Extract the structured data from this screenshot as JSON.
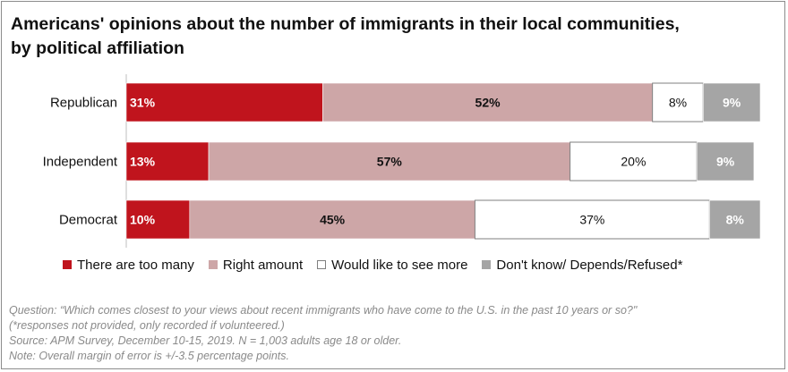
{
  "title": {
    "line1": "Americans' opinions about the number of immigrants in their local communities,",
    "line2": "by political affiliation"
  },
  "chart_data": {
    "type": "bar",
    "orientation": "horizontal",
    "stacked": true,
    "categories": [
      "Republican",
      "Independent",
      "Democrat"
    ],
    "series": [
      {
        "name": "There are too many",
        "values": [
          31,
          13,
          10
        ],
        "color": "#c0141d",
        "label_color": "#ffffff",
        "border": null
      },
      {
        "name": "Right amount",
        "values": [
          52,
          57,
          45
        ],
        "color": "#cda6a7",
        "label_color": "#111111",
        "border": null
      },
      {
        "name": "Would like to see more",
        "values": [
          8,
          20,
          37
        ],
        "color": "#ffffff",
        "label_color": "#111111",
        "border": "#7f7f7f"
      },
      {
        "name": "Don't know/ Depends/Refused*",
        "values": [
          9,
          9,
          8
        ],
        "color": "#a5a5a5",
        "label_color": "#ffffff",
        "border": null
      }
    ],
    "value_suffix": "%",
    "xlim": [
      0,
      100
    ],
    "grid": false,
    "legend_position": "bottom"
  },
  "notes": [
    "Question: “Which comes closest to your views about recent immigrants who have come to the U.S. in the past 10 years or so?\"",
    "(*responses not provided, only recorded if volunteered.)",
    "Source: APM Survey, December 10-15, 2019. N = 1,003 adults age 18 or older.",
    "Note: Overall margin of error is +/-3.5 percentage points."
  ]
}
